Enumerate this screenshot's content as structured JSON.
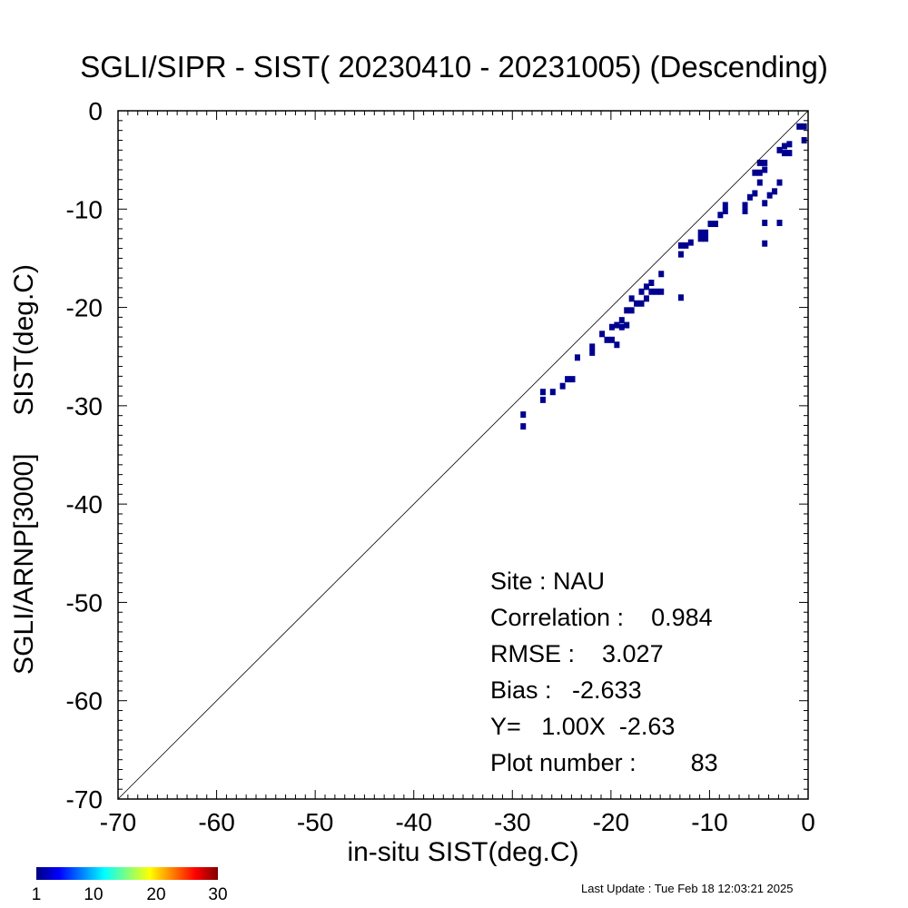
{
  "title": "SGLI/SIPR - SIST( 20230410 - 20231005) (Descending)",
  "xlabel": "in-situ SIST(deg.C)",
  "ylabel_part1": "SGLI/ARNP[3000]",
  "ylabel_part2": "SIST(deg.C)",
  "stats": {
    "site": "Site : NAU",
    "correlation": "Correlation :    0.984",
    "rmse": "RMSE :    3.027",
    "bias": "Bias :   -2.633",
    "fit": "Y=   1.00X  -2.63",
    "plot_number": "Plot number :        83"
  },
  "footer": "Last Update : Tue Feb 18 12:03:21 2025",
  "colorbar": {
    "ticks": [
      "1",
      "10",
      "20",
      "30"
    ],
    "colors": [
      "#00007f",
      "#0000ff",
      "#00ffff",
      "#ffff00",
      "#ff0000",
      "#7f0000"
    ]
  },
  "chart_data": {
    "type": "heatmap",
    "xlim": [
      -70,
      0
    ],
    "ylim": [
      -70,
      0
    ],
    "xticks": [
      "-70",
      "-60",
      "-50",
      "-40",
      "-30",
      "-20",
      "-10",
      "0"
    ],
    "yticks": [
      "-70",
      "-60",
      "-50",
      "-40",
      "-30",
      "-20",
      "-10",
      "0"
    ],
    "reference_line": "1:1",
    "cell_color": "#00008f",
    "points": [
      [
        -28.9,
        -30.9
      ],
      [
        -28.9,
        -32.1
      ],
      [
        -26.9,
        -28.6
      ],
      [
        -26.9,
        -29.4
      ],
      [
        -25.9,
        -28.6
      ],
      [
        -24.9,
        -28.0
      ],
      [
        -24.4,
        -27.3
      ],
      [
        -23.9,
        -27.3
      ],
      [
        -23.4,
        -25.1
      ],
      [
        -21.9,
        -24.0
      ],
      [
        -21.9,
        -24.6
      ],
      [
        -20.9,
        -22.7
      ],
      [
        -20.4,
        -23.3
      ],
      [
        -19.9,
        -22.0
      ],
      [
        -19.9,
        -23.3
      ],
      [
        -19.4,
        -21.8
      ],
      [
        -19.4,
        -23.8
      ],
      [
        -18.9,
        -21.3
      ],
      [
        -18.9,
        -22.0
      ],
      [
        -18.4,
        -20.3
      ],
      [
        -18.4,
        -21.8
      ],
      [
        -17.9,
        -19.1
      ],
      [
        -17.9,
        -20.3
      ],
      [
        -17.4,
        -19.6
      ],
      [
        -16.9,
        -18.4
      ],
      [
        -16.9,
        -19.6
      ],
      [
        -16.4,
        -17.9
      ],
      [
        -16.4,
        -19.1
      ],
      [
        -15.9,
        -17.5
      ],
      [
        -15.9,
        -18.4
      ],
      [
        -15.4,
        -18.4
      ],
      [
        -14.9,
        -16.6
      ],
      [
        -14.9,
        -18.4
      ],
      [
        -12.9,
        -13.7
      ],
      [
        -12.9,
        -14.6
      ],
      [
        -12.9,
        -19.0
      ],
      [
        -12.4,
        -13.7
      ],
      [
        -11.9,
        -13.4
      ],
      [
        -10.9,
        -12.4
      ],
      [
        -10.9,
        -13.0
      ],
      [
        -10.4,
        -12.4
      ],
      [
        -10.4,
        -13.0
      ],
      [
        -9.9,
        -11.5
      ],
      [
        -9.4,
        -11.5
      ],
      [
        -8.9,
        -10.6
      ],
      [
        -8.4,
        -9.6
      ],
      [
        -8.4,
        -10.2
      ],
      [
        -6.4,
        -9.6
      ],
      [
        -6.4,
        -10.2
      ],
      [
        -5.9,
        -8.8
      ],
      [
        -5.4,
        -6.3
      ],
      [
        -5.4,
        -8.4
      ],
      [
        -4.9,
        -5.3
      ],
      [
        -4.9,
        -6.3
      ],
      [
        -4.9,
        -7.3
      ],
      [
        -4.4,
        -5.3
      ],
      [
        -4.4,
        -6.0
      ],
      [
        -4.4,
        -9.4
      ],
      [
        -4.4,
        -11.4
      ],
      [
        -4.4,
        -13.5
      ],
      [
        -3.9,
        -8.6
      ],
      [
        -3.4,
        -8.2
      ],
      [
        -2.9,
        -4.0
      ],
      [
        -2.9,
        -11.4
      ],
      [
        -2.9,
        -7.3
      ],
      [
        -2.4,
        -3.6
      ],
      [
        -2.4,
        -4.3
      ],
      [
        -1.9,
        -3.4
      ],
      [
        -1.9,
        -4.3
      ],
      [
        -0.9,
        -1.6
      ],
      [
        -0.4,
        -1.6
      ],
      [
        -0.4,
        -3.0
      ]
    ]
  }
}
